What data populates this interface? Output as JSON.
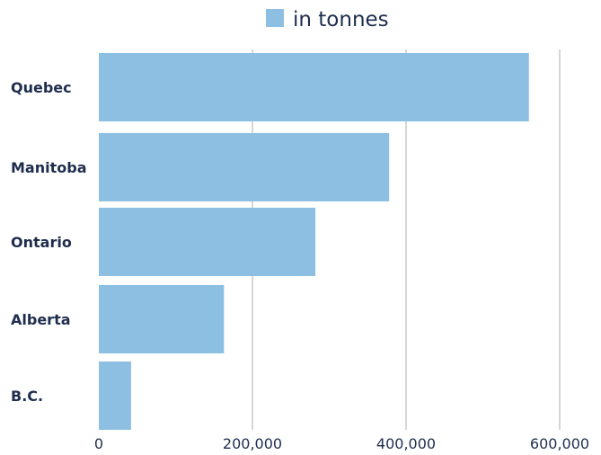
{
  "chart_data": {
    "type": "bar",
    "orientation": "horizontal",
    "title": "",
    "xlabel": "",
    "ylabel": "",
    "categories": [
      "Quebec",
      "Manitoba",
      "Ontario",
      "Alberta",
      "B.C."
    ],
    "series": [
      {
        "name": "in tonnes",
        "values": [
          560000,
          378000,
          282000,
          163000,
          42000
        ],
        "color": "#8dbfe2"
      }
    ],
    "xlim": [
      0,
      600000
    ],
    "x_ticks": [
      0,
      200000,
      400000,
      600000
    ],
    "x_tick_labels": [
      "0",
      "200,000",
      "400,000",
      "600,000"
    ],
    "grid": "vertical",
    "legend_position": "top-center"
  },
  "colors": {
    "bar": "#8dbfe2",
    "gridline": "#c9c9c9",
    "text": "#1f2d4d",
    "background": "#ffffff"
  }
}
